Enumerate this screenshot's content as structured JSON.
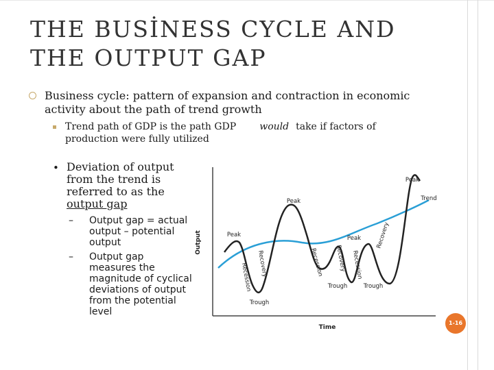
{
  "title": {
    "line1": "THE BUSİNESS CYCLE AND",
    "line2": "THE OUTPUT GAP"
  },
  "bullets": [
    {
      "text": "Business cycle: pattern of expansion and contraction in economic activity about the path of trend growth"
    },
    {
      "text_before": "Trend path of GDP is the path GDP",
      "emphasis": "would",
      "text_after": "take if factors of",
      "text_line2": "production were fully utilized"
    },
    {
      "marker": "•",
      "text_before": "Deviation of output from the trend is referred to as the",
      "underlined": "output gap",
      "sub": [
        {
          "dash": "–",
          "text": "Output gap = actual output – potential output"
        },
        {
          "dash": "–",
          "text": "Output gap measures the magnitude of cyclical deviations of output from the potential level"
        }
      ]
    }
  ],
  "diagram": {
    "axis_y": "Output",
    "axis_x": "Time",
    "labels": {
      "peak1": "Peak",
      "peak2": "Peak",
      "peak3": "Peak",
      "peak4": "Peak",
      "trough1": "Trough",
      "trough2": "Trough",
      "trough3": "Trough",
      "recession1": "Recession",
      "recovery1": "Recovery",
      "recession2": "Recession",
      "recovery2": "Recovery",
      "recession3": "Recession",
      "recovery3": "Recovery",
      "trend": "Trend"
    },
    "colors": {
      "cycle": "#222222",
      "trend": "#2a9fd6",
      "axis": "#444444"
    }
  },
  "page_number": "1-16"
}
